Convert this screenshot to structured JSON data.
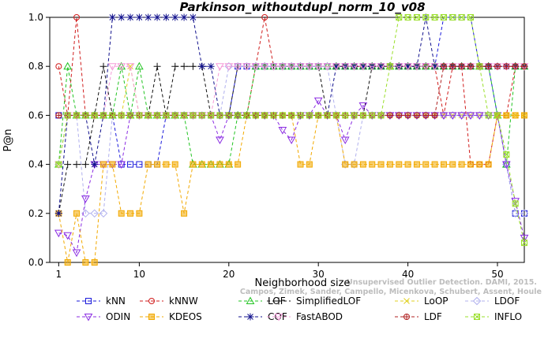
{
  "chart_data": {
    "type": "line",
    "title": "Parkinson_withoutdupl_norm_10_v08",
    "xlabel": "Neighborhood size",
    "ylabel": "P@n",
    "xlim": [
      0,
      53
    ],
    "ylim": [
      0,
      1
    ],
    "x_ticks": [
      1,
      10,
      20,
      30,
      40,
      50
    ],
    "y_ticks": [
      0.0,
      0.2,
      0.4,
      0.6,
      0.8,
      1.0
    ],
    "grid": false,
    "legend_position": "bottom",
    "watermark": {
      "line1": "Unsupervised Outlier Detection. DAMI, 2015.",
      "line2": "Campos, Zimek, Sander, Campello, Micenkova, Schubert, Assent, Houle"
    },
    "series": [
      {
        "name": "kNN",
        "color": "#1a1adb",
        "marker": "square",
        "values": [
          0.6,
          0.6,
          0.6,
          0.6,
          0.6,
          0.6,
          0.6,
          0.4,
          0.4,
          0.4,
          0.4,
          0.4,
          0.6,
          0.6,
          0.6,
          0.6,
          0.6,
          0.6,
          0.6,
          0.6,
          0.8,
          0.8,
          0.8,
          0.8,
          0.8,
          0.8,
          0.8,
          0.8,
          0.8,
          0.8,
          0.8,
          0.8,
          0.8,
          0.8,
          0.8,
          0.8,
          0.8,
          0.8,
          0.8,
          0.8,
          0.8,
          0.8,
          0.8,
          1.0,
          1.0,
          1.0,
          1.0,
          0.8,
          0.8,
          0.6,
          0.4,
          0.2,
          0.2
        ]
      },
      {
        "name": "kNNW",
        "color": "#d01c1c",
        "marker": "circle",
        "values": [
          0.8,
          0.6,
          1.0,
          0.6,
          0.6,
          0.6,
          0.6,
          0.6,
          0.6,
          0.6,
          0.6,
          0.6,
          0.6,
          0.6,
          0.6,
          0.6,
          0.6,
          0.6,
          0.6,
          0.6,
          0.6,
          0.6,
          0.8,
          1.0,
          0.8,
          0.8,
          0.8,
          0.8,
          0.8,
          0.8,
          0.8,
          0.8,
          0.8,
          0.8,
          0.8,
          0.8,
          0.8,
          0.8,
          0.8,
          0.8,
          0.8,
          0.8,
          0.8,
          0.6,
          0.8,
          0.8,
          0.4,
          0.4,
          0.4,
          0.6,
          0.6,
          0.8
        ]
      },
      {
        "name": "LOF",
        "color": "#21c421",
        "marker": "triangle-up",
        "values": [
          0.4,
          0.8,
          0.6,
          0.6,
          0.6,
          0.6,
          0.6,
          0.8,
          0.6,
          0.8,
          0.6,
          0.6,
          0.6,
          0.6,
          0.6,
          0.4,
          0.4,
          0.4,
          0.4,
          0.4,
          0.6,
          0.6,
          0.8,
          0.8,
          0.8,
          0.8,
          0.8,
          0.8,
          0.8,
          0.8,
          0.8,
          0.8,
          0.8,
          0.8,
          0.8,
          0.8,
          0.8,
          0.8,
          0.8,
          0.8,
          0.8,
          0.8,
          0.8,
          0.8,
          0.8,
          0.8,
          0.8,
          0.8,
          0.8,
          0.6,
          0.4,
          0.8,
          0.8
        ]
      },
      {
        "name": "SimplifiedLOF",
        "color": "#111111",
        "marker": "plus",
        "values": [
          0.2,
          0.4,
          0.4,
          0.4,
          0.6,
          0.8,
          0.6,
          0.6,
          0.6,
          0.6,
          0.6,
          0.8,
          0.6,
          0.8,
          0.8,
          0.8,
          0.8,
          0.6,
          0.6,
          0.6,
          0.8,
          0.8,
          0.8,
          0.8,
          0.8,
          0.8,
          0.8,
          0.8,
          0.8,
          0.8,
          0.6,
          0.6,
          0.6,
          0.6,
          0.6,
          0.8,
          0.8,
          0.8,
          0.8,
          0.8,
          0.8,
          0.8,
          0.8,
          0.8,
          0.8,
          0.8,
          0.8,
          0.8,
          0.8,
          0.8,
          0.8,
          0.8,
          0.8
        ]
      },
      {
        "name": "LoOP",
        "color": "#e0d020",
        "marker": "x",
        "values": [
          0.4,
          0.6,
          0.6,
          0.6,
          0.6,
          0.6,
          0.6,
          0.6,
          0.8,
          0.6,
          0.6,
          0.6,
          0.6,
          0.6,
          0.6,
          0.6,
          0.6,
          0.6,
          0.6,
          0.6,
          0.6,
          0.6,
          0.6,
          0.6,
          0.6,
          0.6,
          0.6,
          0.6,
          0.6,
          0.6,
          0.6,
          0.6,
          0.6,
          0.6,
          0.6,
          0.6,
          0.6,
          0.6,
          0.6,
          0.6,
          0.6,
          0.6,
          0.6,
          0.6,
          0.6,
          0.6,
          0.6,
          0.6,
          0.6,
          0.6,
          0.6,
          0.6,
          0.6
        ]
      },
      {
        "name": "LDOF",
        "color": "#b0b0ee",
        "marker": "diamond",
        "values": [
          0.4,
          0.6,
          0.6,
          0.2,
          0.2,
          0.2,
          0.6,
          0.6,
          0.6,
          0.6,
          0.6,
          0.6,
          0.6,
          0.6,
          0.6,
          0.6,
          0.6,
          0.6,
          0.6,
          0.8,
          0.8,
          0.8,
          0.8,
          0.8,
          0.8,
          0.8,
          0.8,
          0.8,
          0.8,
          0.8,
          0.8,
          0.6,
          0.4,
          0.4,
          0.6,
          0.6,
          0.6,
          0.6,
          0.6,
          0.6,
          0.6,
          0.6,
          0.6,
          0.6,
          0.6,
          0.6,
          0.6,
          0.6,
          0.6,
          0.6,
          0.4,
          0.2,
          0.2
        ]
      },
      {
        "name": "ODIN",
        "color": "#8a2be2",
        "marker": "triangle-down",
        "values": [
          0.12,
          0.11,
          0.04,
          0.26,
          0.4,
          0.4,
          0.4,
          0.4,
          0.6,
          0.6,
          0.6,
          0.6,
          0.6,
          0.6,
          0.6,
          0.6,
          0.6,
          0.6,
          0.5,
          0.6,
          0.6,
          0.6,
          0.6,
          0.6,
          0.6,
          0.54,
          0.5,
          0.6,
          0.6,
          0.66,
          0.6,
          0.6,
          0.5,
          0.6,
          0.64,
          0.6,
          0.6,
          0.6,
          0.6,
          0.6,
          0.6,
          0.6,
          0.6,
          0.6,
          0.6,
          0.6,
          0.6,
          0.6,
          0.6,
          0.6,
          0.4,
          0.25,
          0.1
        ]
      },
      {
        "name": "KDEOS",
        "color": "#f2a900",
        "marker": "square-filled",
        "values": [
          0.2,
          0.0,
          0.2,
          0.0,
          0.0,
          0.4,
          0.4,
          0.2,
          0.2,
          0.2,
          0.4,
          0.4,
          0.4,
          0.4,
          0.2,
          0.4,
          0.4,
          0.4,
          0.4,
          0.4,
          0.4,
          0.6,
          0.6,
          0.6,
          0.6,
          0.6,
          0.6,
          0.4,
          0.4,
          0.6,
          0.6,
          0.6,
          0.4,
          0.4,
          0.4,
          0.4,
          0.4,
          0.4,
          0.4,
          0.4,
          0.4,
          0.4,
          0.4,
          0.4,
          0.4,
          0.4,
          0.4,
          0.4,
          0.4,
          0.6,
          0.6,
          0.6,
          0.6
        ]
      },
      {
        "name": "COF",
        "color": "#10108c",
        "marker": "asterisk",
        "values": [
          0.2,
          0.6,
          0.6,
          0.6,
          0.4,
          0.6,
          1.0,
          1.0,
          1.0,
          1.0,
          1.0,
          1.0,
          1.0,
          1.0,
          1.0,
          1.0,
          0.8,
          0.8,
          0.6,
          0.6,
          0.6,
          0.6,
          0.6,
          0.6,
          0.6,
          0.6,
          0.6,
          0.6,
          0.6,
          0.6,
          0.6,
          0.8,
          0.8,
          0.8,
          0.8,
          0.8,
          0.8,
          0.8,
          0.8,
          0.8,
          0.8,
          1.0,
          0.8,
          0.8,
          0.8,
          0.8,
          0.8,
          0.8,
          0.8,
          0.8,
          0.8,
          0.8,
          0.8
        ]
      },
      {
        "name": "FastABOD",
        "color": "#f59ad8",
        "marker": "triangle-down",
        "values": [
          0.4,
          0.6,
          0.6,
          0.6,
          0.6,
          0.6,
          0.8,
          0.8,
          0.8,
          0.6,
          0.6,
          0.6,
          0.6,
          0.6,
          0.6,
          0.6,
          0.6,
          0.6,
          0.8,
          0.8,
          0.8,
          0.8,
          0.8,
          0.8,
          0.8,
          0.8,
          0.8,
          0.8,
          0.8,
          0.8,
          0.8,
          0.8,
          0.8,
          0.8,
          0.8,
          0.8,
          0.8,
          0.8,
          0.8,
          0.8,
          0.8,
          0.8,
          0.8,
          0.8,
          0.8,
          0.8,
          0.8,
          0.8,
          0.8,
          0.8,
          0.8,
          0.8,
          0.8
        ]
      },
      {
        "name": "LDF",
        "color": "#b02222",
        "marker": "circle-plus",
        "values": [
          0.6,
          0.6,
          0.6,
          0.6,
          0.6,
          0.6,
          0.6,
          0.6,
          0.6,
          0.6,
          0.6,
          0.6,
          0.6,
          0.6,
          0.6,
          0.6,
          0.6,
          0.6,
          0.6,
          0.6,
          0.6,
          0.6,
          0.6,
          0.6,
          0.6,
          0.6,
          0.6,
          0.6,
          0.6,
          0.6,
          0.6,
          0.6,
          0.6,
          0.6,
          0.6,
          0.6,
          0.6,
          0.6,
          0.6,
          0.6,
          0.6,
          0.6,
          0.6,
          0.8,
          0.8,
          0.8,
          0.8,
          0.8,
          0.8,
          0.8,
          0.8,
          0.8,
          0.8
        ]
      },
      {
        "name": "INFLO",
        "color": "#9adf2a",
        "marker": "square-x",
        "values": [
          0.4,
          0.6,
          0.6,
          0.6,
          0.6,
          0.6,
          0.6,
          0.6,
          0.6,
          0.6,
          0.6,
          0.6,
          0.6,
          0.6,
          0.6,
          0.6,
          0.6,
          0.6,
          0.6,
          0.6,
          0.6,
          0.6,
          0.6,
          0.6,
          0.6,
          0.6,
          0.6,
          0.6,
          0.6,
          0.6,
          0.6,
          0.6,
          0.6,
          0.6,
          0.6,
          0.6,
          0.6,
          0.8,
          1.0,
          1.0,
          1.0,
          1.0,
          1.0,
          1.0,
          1.0,
          1.0,
          1.0,
          0.8,
          0.6,
          0.6,
          0.44,
          0.24,
          0.08
        ]
      }
    ]
  }
}
